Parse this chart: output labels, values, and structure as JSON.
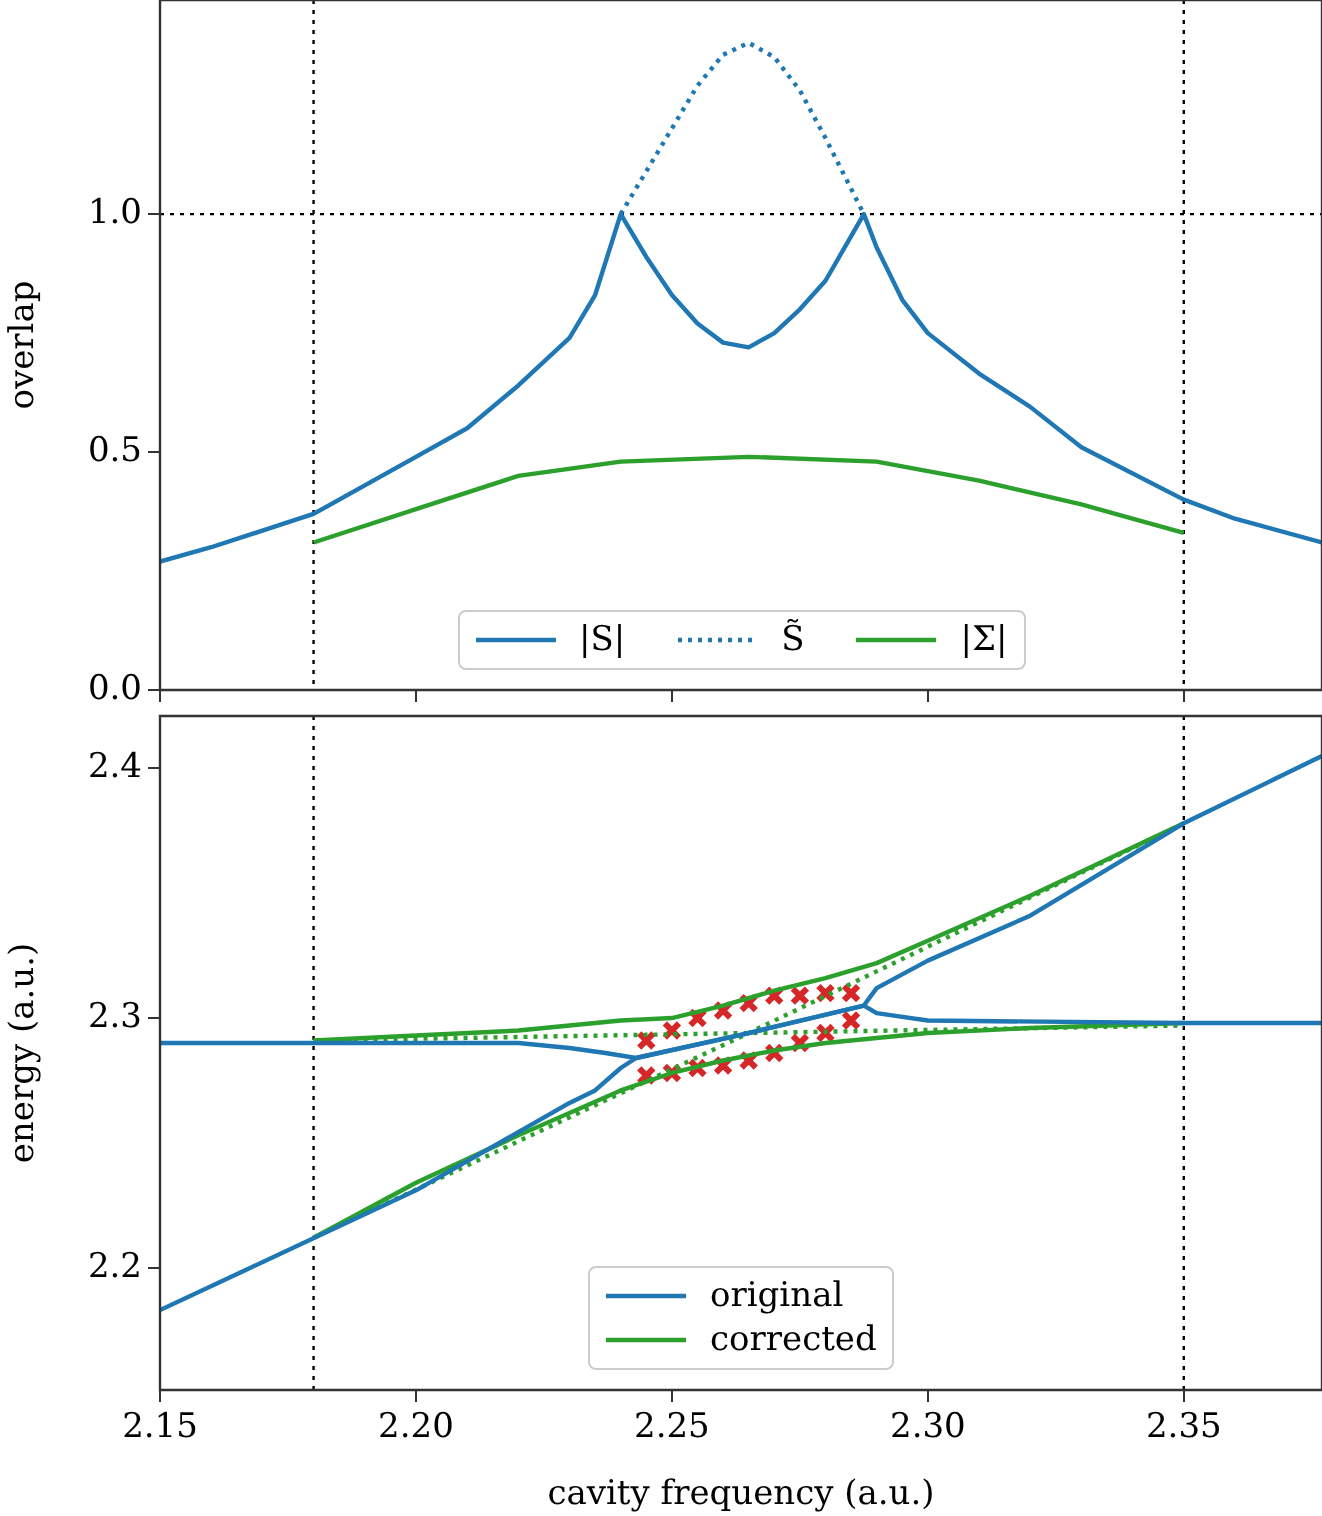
{
  "chart_data": [
    {
      "type": "line",
      "ylabel": "overlap",
      "xlim": [
        2.15,
        2.377
      ],
      "ylim": [
        0,
        1.45
      ],
      "xticks": [
        2.15,
        2.2,
        2.25,
        2.3,
        2.35
      ],
      "yticks": [
        {
          "value": 0,
          "label": "0.0"
        },
        {
          "value": 0.5,
          "label": "0.5"
        },
        {
          "value": 1,
          "label": "1.0"
        }
      ],
      "tick_labels": "y",
      "grid": false,
      "legend": "bottom",
      "marker": "none",
      "ref_lines": [
        {
          "axis": "x",
          "value": 2.18,
          "color": "#000000",
          "line_style": "dotted"
        },
        {
          "axis": "x",
          "value": 2.35,
          "color": "#000000",
          "line_style": "dotted"
        },
        {
          "axis": "y",
          "value": 1,
          "color": "#000000",
          "line_style": "dotted"
        }
      ],
      "series": [
        {
          "name": "|S|",
          "color": "#1f77b4",
          "line_style": "solid",
          "x": [
            2.15,
            2.16,
            2.17,
            2.18,
            2.19,
            2.2,
            2.21,
            2.22,
            2.23,
            2.235,
            2.24,
            2.245,
            2.25,
            2.255,
            2.26,
            2.265,
            2.27,
            2.275,
            2.28,
            2.2875,
            2.29,
            2.295,
            2.3,
            2.31,
            2.32,
            2.33,
            2.35,
            2.36,
            2.377
          ],
          "values": [
            0.27,
            0.3,
            0.335,
            0.37,
            0.43,
            0.49,
            0.55,
            0.64,
            0.74,
            0.83,
            1.0,
            0.91,
            0.83,
            0.77,
            0.73,
            0.72,
            0.75,
            0.8,
            0.86,
            1.0,
            0.93,
            0.82,
            0.75,
            0.665,
            0.595,
            0.51,
            0.4,
            0.36,
            0.31
          ]
        },
        {
          "name": "S̃",
          "color": "#1f77b4",
          "line_style": "dotted",
          "x": [
            2.24,
            2.245,
            2.25,
            2.255,
            2.26,
            2.265,
            2.27,
            2.275,
            2.28,
            2.2875
          ],
          "values": [
            1.0,
            1.09,
            1.18,
            1.27,
            1.335,
            1.36,
            1.33,
            1.26,
            1.16,
            1.0
          ]
        },
        {
          "name": "|Σ|",
          "color": "#2ca02c",
          "line_style": "solid",
          "x": [
            2.18,
            2.2,
            2.22,
            2.24,
            2.265,
            2.29,
            2.31,
            2.33,
            2.35
          ],
          "values": [
            0.31,
            0.38,
            0.45,
            0.48,
            0.49,
            0.48,
            0.44,
            0.39,
            0.33
          ]
        }
      ]
    },
    {
      "type": "line",
      "xlabel": "cavity frequency (a.u.)",
      "ylabel": "energy (a.u.)",
      "xlim": [
        2.15,
        2.377
      ],
      "ylim": [
        2.151,
        2.421
      ],
      "xticks": [
        {
          "value": 2.15,
          "label": "2.15"
        },
        {
          "value": 2.2,
          "label": "2.20"
        },
        {
          "value": 2.25,
          "label": "2.25"
        },
        {
          "value": 2.3,
          "label": "2.30"
        },
        {
          "value": 2.35,
          "label": "2.35"
        }
      ],
      "yticks": [
        2.2,
        2.3,
        2.4
      ],
      "grid": false,
      "legend": "bottom",
      "marker": "none",
      "ref_lines": [
        {
          "axis": "x",
          "value": 2.18,
          "color": "#000000",
          "line_style": "dotted"
        },
        {
          "axis": "x",
          "value": 2.35,
          "color": "#000000",
          "line_style": "dotted"
        }
      ],
      "series": [
        {
          "name": "original",
          "color": "#1f77b4",
          "line_style": "solid",
          "x": [
            2.15,
            2.2,
            2.23,
            2.235,
            2.24,
            2.243,
            2.265,
            2.2875,
            2.29,
            2.3,
            2.35,
            2.377
          ],
          "values": [
            2.183,
            2.231,
            2.266,
            2.271,
            2.28,
            2.284,
            2.294,
            2.305,
            2.302,
            2.299,
            2.298,
            2.298
          ]
        },
        {
          "color": "#1f77b4",
          "line_style": "solid",
          "x": [
            2.15,
            2.2,
            2.22,
            2.23,
            2.237,
            2.243,
            2.265,
            2.2875,
            2.29,
            2.3,
            2.32,
            2.35,
            2.377
          ],
          "values": [
            2.29,
            2.29,
            2.29,
            2.288,
            2.286,
            2.284,
            2.294,
            2.305,
            2.312,
            2.323,
            2.341,
            2.378,
            2.405
          ]
        },
        {
          "color": "#2ca02c",
          "line_style": "dotted",
          "x": [
            2.18,
            2.265,
            2.35
          ],
          "values": [
            2.291,
            2.294,
            2.297
          ]
        },
        {
          "color": "#2ca02c",
          "line_style": "dotted",
          "x": [
            2.18,
            2.265,
            2.35
          ],
          "values": [
            2.212,
            2.294,
            2.378
          ]
        },
        {
          "name": "corrected",
          "color": "#2ca02c",
          "line_style": "solid",
          "x": [
            2.18,
            2.2,
            2.22,
            2.24,
            2.25,
            2.26,
            2.27,
            2.28,
            2.29,
            2.3,
            2.32,
            2.35
          ],
          "values": [
            2.291,
            2.293,
            2.295,
            2.299,
            2.3,
            2.305,
            2.311,
            2.316,
            2.322,
            2.331,
            2.349,
            2.378
          ]
        },
        {
          "color": "#2ca02c",
          "line_style": "solid",
          "x": [
            2.18,
            2.2,
            2.22,
            2.24,
            2.25,
            2.26,
            2.27,
            2.28,
            2.3,
            2.32,
            2.35
          ],
          "values": [
            2.212,
            2.234,
            2.253,
            2.271,
            2.278,
            2.283,
            2.287,
            2.29,
            2.294,
            2.296,
            2.298
          ]
        },
        {
          "type": "scatter",
          "color": "#d62728",
          "marker": "cross",
          "x": [
            2.245,
            2.25,
            2.255,
            2.26,
            2.265,
            2.27,
            2.275,
            2.28,
            2.285
          ],
          "values": [
            2.291,
            2.295,
            2.3,
            2.303,
            2.306,
            2.309,
            2.309,
            2.31,
            2.31
          ]
        },
        {
          "type": "scatter",
          "color": "#d62728",
          "marker": "cross",
          "x": [
            2.245,
            2.25,
            2.255,
            2.26,
            2.265,
            2.27,
            2.275,
            2.28,
            2.285
          ],
          "values": [
            2.277,
            2.278,
            2.28,
            2.281,
            2.283,
            2.286,
            2.29,
            2.294,
            2.299
          ]
        }
      ]
    }
  ]
}
